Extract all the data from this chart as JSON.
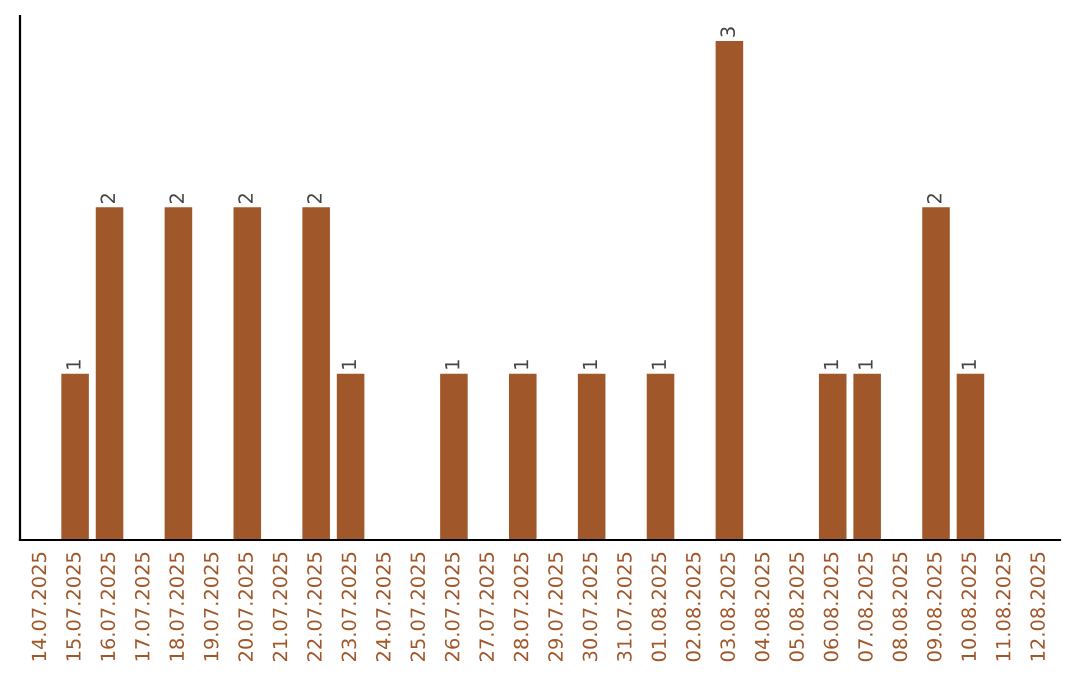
{
  "chart_data": {
    "type": "bar",
    "categories": [
      "14.07.2025",
      "15.07.2025",
      "16.07.2025",
      "17.07.2025",
      "18.07.2025",
      "19.07.2025",
      "20.07.2025",
      "21.07.2025",
      "22.07.2025",
      "23.07.2025",
      "24.07.2025",
      "25.07.2025",
      "26.07.2025",
      "27.07.2025",
      "28.07.2025",
      "29.07.2025",
      "30.07.2025",
      "31.07.2025",
      "01.08.2025",
      "02.08.2025",
      "03.08.2025",
      "04.08.2025",
      "05.08.2025",
      "06.08.2025",
      "07.08.2025",
      "08.08.2025",
      "09.08.2025",
      "10.08.2025",
      "11.08.2025",
      "12.08.2025"
    ],
    "values": [
      0,
      1,
      2,
      0,
      2,
      0,
      2,
      0,
      2,
      1,
      0,
      0,
      1,
      0,
      1,
      0,
      1,
      0,
      1,
      0,
      3,
      0,
      0,
      1,
      1,
      0,
      2,
      1,
      0,
      0
    ],
    "value_labels": [
      null,
      "1",
      "2",
      null,
      "2",
      null,
      "2",
      null,
      "2",
      "1",
      null,
      null,
      "1",
      null,
      "1",
      null,
      "1",
      null,
      "1",
      null,
      "3",
      null,
      null,
      "1",
      "1",
      null,
      "2",
      "1",
      null,
      null
    ],
    "color": "#a0572a",
    "tick_labels": "x"
  }
}
